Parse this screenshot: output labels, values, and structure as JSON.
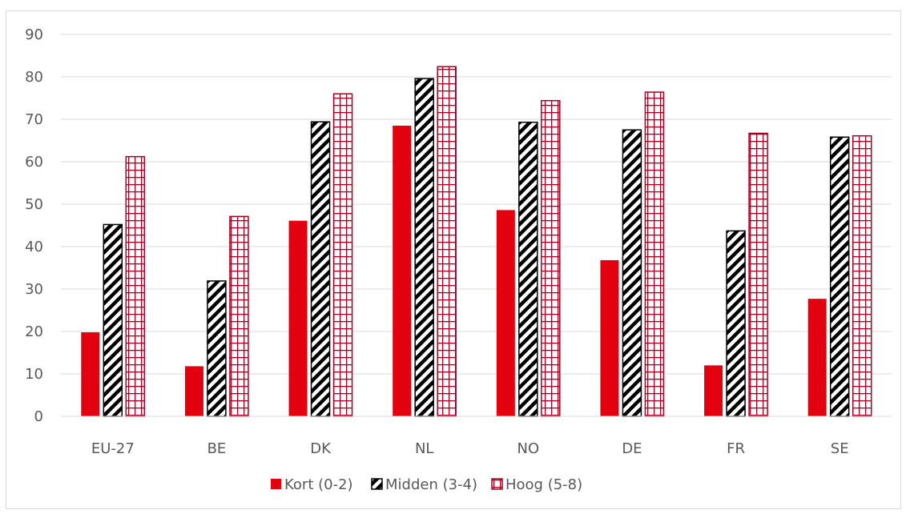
{
  "chart_data": {
    "type": "bar",
    "title": "",
    "xlabel": "",
    "ylabel": "",
    "ylim": [
      0,
      90
    ],
    "yticks": [
      0,
      10,
      20,
      30,
      40,
      50,
      60,
      70,
      80,
      90
    ],
    "grid": true,
    "legend_position": "bottom",
    "categories": [
      "EU-27",
      "BE",
      "DK",
      "NL",
      "NO",
      "DE",
      "FR",
      "SE"
    ],
    "series": [
      {
        "name": "Kort (0-2)",
        "values": [
          19.8,
          11.8,
          46.1,
          68.5,
          48.6,
          36.8,
          12.0,
          27.7
        ],
        "color": "#e3000f",
        "pattern": "solid"
      },
      {
        "name": "Midden (3-4)",
        "values": [
          45.2,
          31.9,
          69.4,
          79.6,
          69.3,
          67.5,
          43.7,
          65.8
        ],
        "color": "#000000",
        "pattern": "diagonal-stripes"
      },
      {
        "name": "Hoog (5-8)",
        "values": [
          61.2,
          47.1,
          76.0,
          82.4,
          74.4,
          76.4,
          66.7,
          66.1
        ],
        "color": "#a50021",
        "pattern": "grid"
      }
    ]
  }
}
